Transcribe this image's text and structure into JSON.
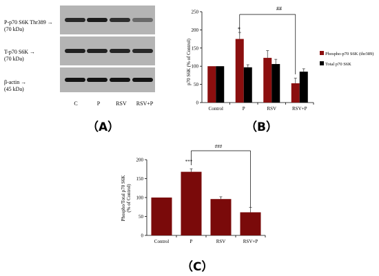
{
  "western_blot": {
    "rows": [
      {
        "label": "P-p70 S6K Thr389",
        "mw": "(70 kDa)",
        "intensity": [
          0.85,
          0.95,
          0.8,
          0.35
        ]
      },
      {
        "label": "T-p70 S6K",
        "mw": "(70 kDa)",
        "intensity": [
          0.9,
          0.9,
          0.88,
          0.85
        ]
      },
      {
        "label": "β-actin",
        "mw": "(45 kDa)",
        "intensity": [
          1.0,
          1.0,
          1.0,
          1.0
        ]
      }
    ],
    "lanes": [
      "C",
      "P",
      "RSV",
      "RSV+P"
    ]
  },
  "panel_labels": {
    "a": "（A）",
    "b": "（B）",
    "c": "（C）"
  },
  "colors": {
    "phospho": "#8b0f0f",
    "total": "#000000",
    "ratio": "#7a0a0a"
  },
  "chart_data": [
    {
      "type": "bar",
      "categories": [
        "Control",
        "P",
        "RSV",
        "RSV+P"
      ],
      "series": [
        {
          "name": "Phospho-p70 S6K (thr389)",
          "values": [
            100,
            175,
            123,
            53
          ],
          "errors": [
            0,
            18,
            20,
            14
          ]
        },
        {
          "name": "Total p70 S6K",
          "values": [
            100,
            97,
            106,
            85
          ],
          "errors": [
            0,
            7,
            13,
            8
          ]
        }
      ],
      "ylabel": "p70 S6K (% of Control)",
      "ylim": [
        0,
        250
      ],
      "yticks": [
        0,
        50,
        100,
        150,
        200,
        250
      ],
      "annotations": {
        "star": "*",
        "bracket": "##"
      },
      "legend": "right"
    },
    {
      "type": "bar",
      "categories": [
        "Control",
        "P",
        "RSV",
        "RSV+P"
      ],
      "series": [
        {
          "values": [
            100,
            168,
            96,
            61
          ],
          "errors": [
            0,
            8,
            6,
            13
          ]
        }
      ],
      "ylabel_lines": [
        "Phospho/Total p70 S6K",
        "(% of Control)"
      ],
      "ylim": [
        0,
        200
      ],
      "yticks": [
        0,
        50,
        100,
        150,
        200
      ],
      "annotations": {
        "star": "***",
        "bracket": "###"
      }
    }
  ]
}
